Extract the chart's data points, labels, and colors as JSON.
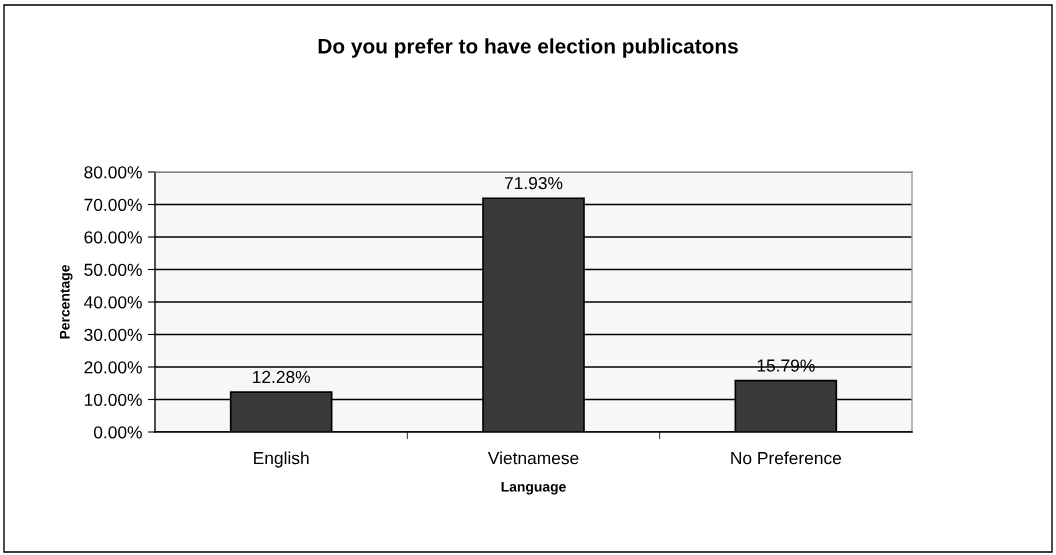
{
  "chart_data": {
    "type": "bar",
    "title": "Do you prefer to have election publicatons",
    "xlabel": "Language",
    "ylabel": "Percentage",
    "categories": [
      "English",
      "Vietnamese",
      "No Preference"
    ],
    "values": [
      12.28,
      71.93,
      15.79
    ],
    "color": "#3a3a3a",
    "value_labels": [
      "12.28%",
      "71.93%",
      "15.79%"
    ],
    "ylim": [
      0,
      80
    ],
    "yticks": [
      {
        "value": 0,
        "label": "0.00%"
      },
      {
        "value": 10,
        "label": "10.00%"
      },
      {
        "value": 20,
        "label": "20.00%"
      },
      {
        "value": 30,
        "label": "30.00%"
      },
      {
        "value": 40,
        "label": "40.00%"
      },
      {
        "value": 50,
        "label": "50.00%"
      },
      {
        "value": 60,
        "label": "60.00%"
      },
      {
        "value": 70,
        "label": "70.00%"
      },
      {
        "value": 80,
        "label": "80.00%"
      }
    ],
    "grid": "y",
    "legend": false
  }
}
